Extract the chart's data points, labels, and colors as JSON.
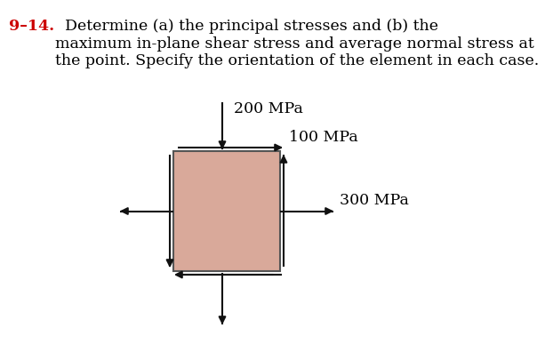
{
  "bg_color": "#ffffff",
  "box_color": "#d9a99a",
  "box_edge_color": "#555555",
  "arrow_color": "#111111",
  "title_number": "9–14.",
  "title_number_color": "#cc0000",
  "title_body": "  Determine (a) the principal stresses and (b) the\nmaximum in-plane shear stress and average normal stress at\nthe point. Specify the orientation of the element in each case.",
  "title_fontsize": 12.5,
  "label_fontsize": 12.5,
  "label_200": "200 MPa",
  "label_100": "100 MPa",
  "label_300": "300 MPa",
  "figsize": [
    6.22,
    4.06
  ],
  "dpi": 100
}
